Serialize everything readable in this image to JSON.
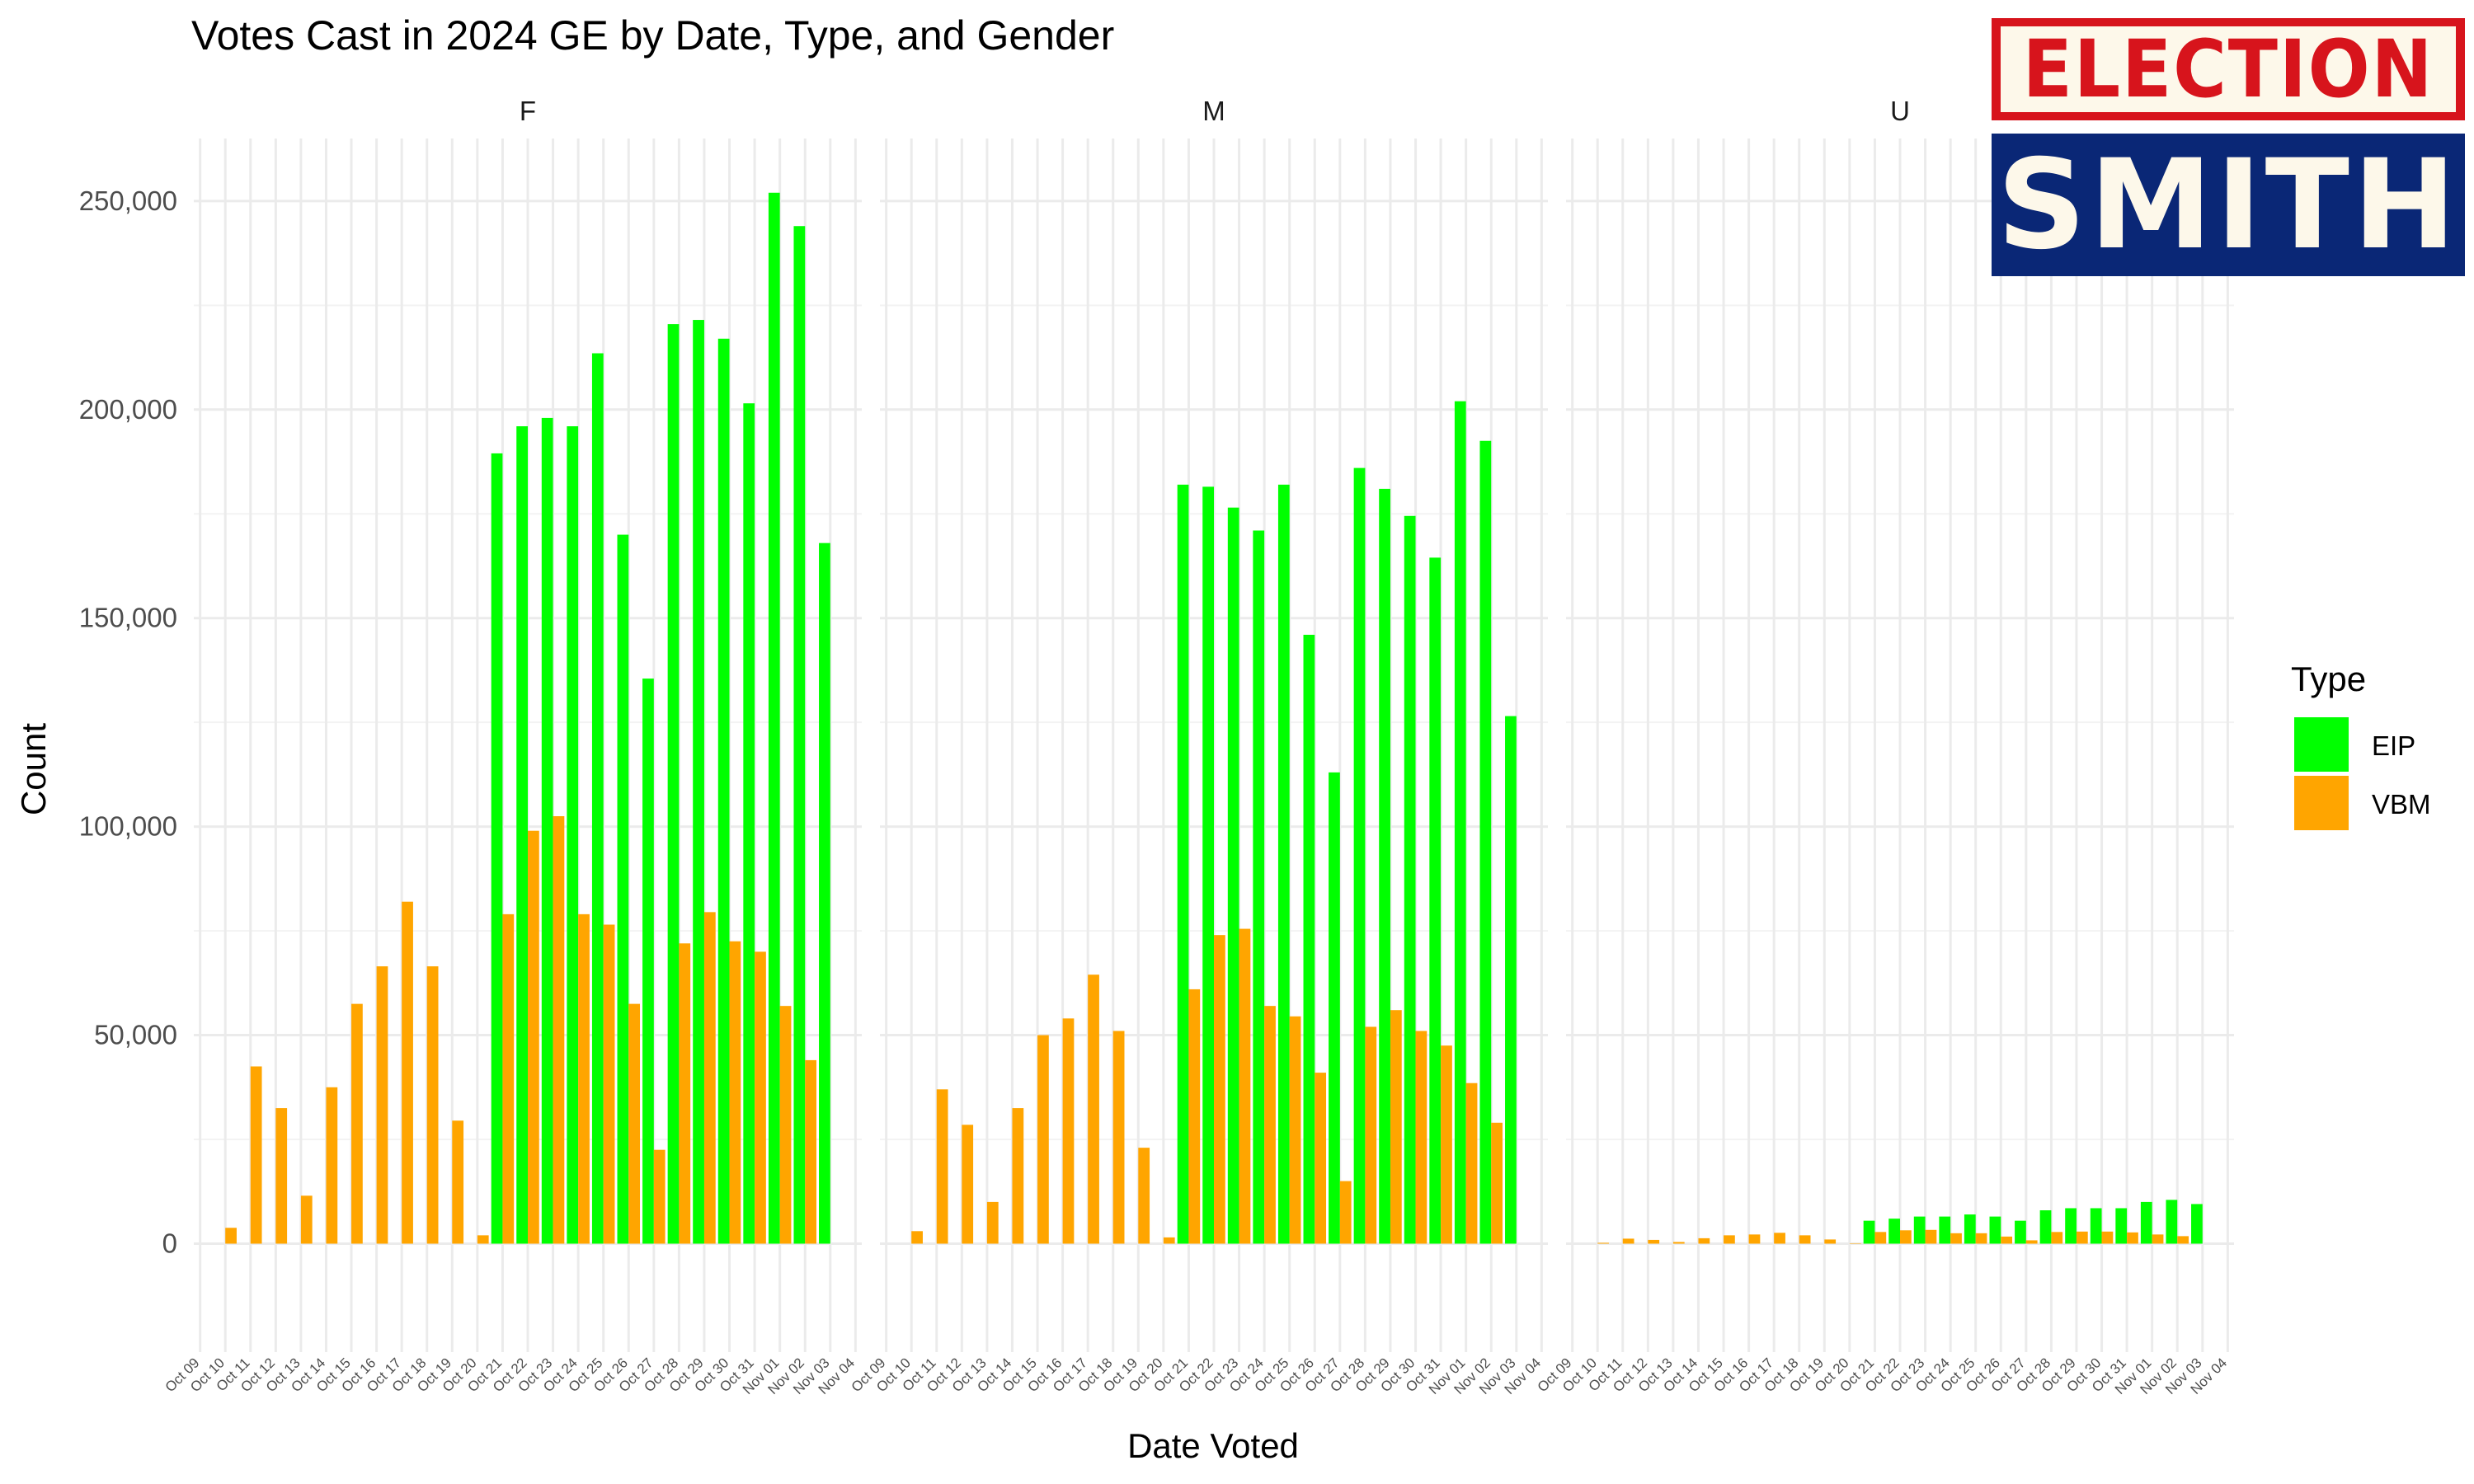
{
  "chart_data": {
    "type": "bar",
    "title": "Votes Cast in 2024 GE by Date, Type, and Gender",
    "xlabel": "Date Voted",
    "ylabel": "Count",
    "ylim": [
      -26000,
      265000
    ],
    "yticks": [
      0,
      50000,
      100000,
      150000,
      200000,
      250000
    ],
    "ytick_labels": [
      "0",
      "50,000",
      "100,000",
      "150,000",
      "200,000",
      "250,000"
    ],
    "grid": true,
    "legend": {
      "title": "Type",
      "position": "right"
    },
    "x_ticks": [
      "Oct 09",
      "Oct 10",
      "Oct 11",
      "Oct 12",
      "Oct 13",
      "Oct 14",
      "Oct 15",
      "Oct 16",
      "Oct 17",
      "Oct 18",
      "Oct 19",
      "Oct 20",
      "Oct 21",
      "Oct 22",
      "Oct 23",
      "Oct 24",
      "Oct 25",
      "Oct 26",
      "Oct 27",
      "Oct 28",
      "Oct 29",
      "Oct 30",
      "Oct 31",
      "Nov 01",
      "Nov 02",
      "Nov 03",
      "Nov 04"
    ],
    "series_styles": [
      {
        "name": "EIP",
        "color": "#00ff00"
      },
      {
        "name": "VBM",
        "color": "#ffa500"
      }
    ],
    "facets": [
      {
        "label": "F",
        "dates": [
          "Oct 10",
          "Oct 11",
          "Oct 12",
          "Oct 13",
          "Oct 14",
          "Oct 15",
          "Oct 16",
          "Oct 17",
          "Oct 18",
          "Oct 19",
          "Oct 20",
          "Oct 21",
          "Oct 22",
          "Oct 23",
          "Oct 24",
          "Oct 25",
          "Oct 26",
          "Oct 27",
          "Oct 28",
          "Oct 29",
          "Oct 30",
          "Oct 31",
          "Nov 01",
          "Nov 02",
          "Nov 03"
        ],
        "EIP": [
          0,
          0,
          0,
          0,
          0,
          0,
          0,
          0,
          0,
          0,
          0,
          189500,
          196000,
          198000,
          196000,
          213500,
          170000,
          135500,
          220500,
          221500,
          217000,
          201500,
          252000,
          244000,
          168000
        ],
        "VBM": [
          3800,
          42500,
          32500,
          11500,
          37500,
          57500,
          66500,
          82000,
          66500,
          29500,
          2000,
          79000,
          99000,
          102500,
          79000,
          76500,
          57500,
          22500,
          72000,
          79500,
          72500,
          70000,
          57000,
          44000,
          0
        ]
      },
      {
        "label": "M",
        "dates": [
          "Oct 10",
          "Oct 11",
          "Oct 12",
          "Oct 13",
          "Oct 14",
          "Oct 15",
          "Oct 16",
          "Oct 17",
          "Oct 18",
          "Oct 19",
          "Oct 20",
          "Oct 21",
          "Oct 22",
          "Oct 23",
          "Oct 24",
          "Oct 25",
          "Oct 26",
          "Oct 27",
          "Oct 28",
          "Oct 29",
          "Oct 30",
          "Oct 31",
          "Nov 01",
          "Nov 02",
          "Nov 03"
        ],
        "EIP": [
          0,
          0,
          0,
          0,
          0,
          0,
          0,
          0,
          0,
          0,
          0,
          182000,
          181500,
          176500,
          171000,
          182000,
          146000,
          113000,
          186000,
          181000,
          174500,
          164500,
          202000,
          192500,
          126500
        ],
        "VBM": [
          3000,
          37000,
          28500,
          10000,
          32500,
          50000,
          54000,
          64500,
          51000,
          23000,
          1500,
          61000,
          74000,
          75500,
          57000,
          54500,
          41000,
          15000,
          52000,
          56000,
          51000,
          47500,
          38500,
          29000,
          0
        ]
      },
      {
        "label": "U",
        "dates": [
          "Oct 10",
          "Oct 11",
          "Oct 12",
          "Oct 13",
          "Oct 14",
          "Oct 15",
          "Oct 16",
          "Oct 17",
          "Oct 18",
          "Oct 19",
          "Oct 20",
          "Oct 21",
          "Oct 22",
          "Oct 23",
          "Oct 24",
          "Oct 25",
          "Oct 26",
          "Oct 27",
          "Oct 28",
          "Oct 29",
          "Oct 30",
          "Oct 31",
          "Nov 01",
          "Nov 02",
          "Nov 03"
        ],
        "EIP": [
          0,
          0,
          0,
          0,
          0,
          0,
          0,
          0,
          0,
          0,
          0,
          5500,
          6000,
          6500,
          6500,
          7000,
          6500,
          5500,
          8000,
          8500,
          8500,
          8500,
          10000,
          10500,
          9500
        ],
        "VBM": [
          200,
          1200,
          900,
          400,
          1300,
          2000,
          2200,
          2600,
          2000,
          1000,
          100,
          2800,
          3200,
          3300,
          2500,
          2500,
          1700,
          800,
          2800,
          2900,
          2900,
          2700,
          2200,
          1800,
          0
        ]
      }
    ]
  },
  "logo": {
    "alt": "Election Smith logo",
    "line1": "ELECTION",
    "line2": "SMITH",
    "colors": {
      "red": "#d7141c",
      "navy": "#0a2776",
      "cream": "#fdf8ea"
    }
  }
}
